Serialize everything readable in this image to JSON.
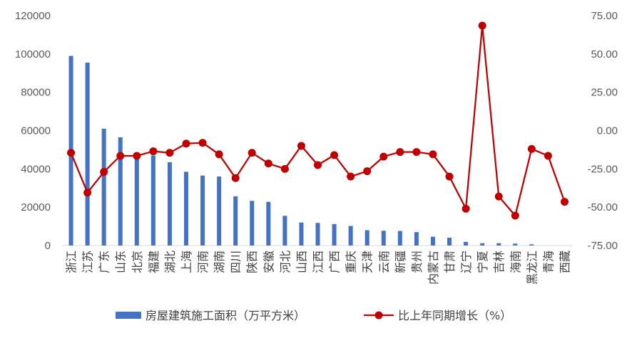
{
  "chart_data": {
    "type": "bar+line",
    "categories": [
      "浙江",
      "江苏",
      "广东",
      "山东",
      "北京",
      "福建",
      "湖北",
      "上海",
      "河南",
      "湖南",
      "四川",
      "陕西",
      "安徽",
      "河北",
      "山西",
      "江西",
      "广西",
      "重庆",
      "天津",
      "云南",
      "新疆",
      "贵州",
      "内蒙古",
      "甘肃",
      "辽宁",
      "宁夏",
      "吉林",
      "海南",
      "黑龙江",
      "青海",
      "西藏"
    ],
    "series": [
      {
        "name": "房屋建筑施工面积（万平方米）",
        "type": "bar",
        "axis": "left",
        "color": "#4472C4",
        "values": [
          99000,
          95500,
          61000,
          56500,
          47500,
          47000,
          43500,
          38500,
          36500,
          36000,
          25700,
          23300,
          22800,
          15500,
          12000,
          11800,
          11200,
          10200,
          8000,
          7700,
          7600,
          7000,
          4600,
          4100,
          1900,
          1200,
          1200,
          1000,
          600,
          0,
          0
        ]
      },
      {
        "name": "比上年同期增长（%）",
        "type": "line",
        "axis": "right",
        "color": "#C00000",
        "values": [
          -14.5,
          -40.5,
          -27.0,
          -16.5,
          -16.5,
          -13.5,
          -14.5,
          -8.5,
          -8.0,
          -15.5,
          -31.0,
          -14.5,
          -21.5,
          -25.0,
          -10.0,
          -22.5,
          -16.0,
          -30.0,
          -26.5,
          -17.0,
          -14.0,
          -14.0,
          -15.5,
          -30.0,
          -51.0,
          68.5,
          -43.0,
          -55.5,
          -12.0,
          -16.5,
          -46.5
        ]
      }
    ],
    "y_left": {
      "ylim": [
        0,
        120000
      ],
      "ticks": [
        "0",
        "20000",
        "40000",
        "60000",
        "80000",
        "100000",
        "120000"
      ]
    },
    "y_right": {
      "ylim": [
        -75,
        75
      ],
      "ticks": [
        "-75.00",
        "-50.00",
        "-25.00",
        "0.00",
        "25.00",
        "50.00",
        "75.00"
      ]
    },
    "grid": false,
    "legend": "bottom"
  }
}
